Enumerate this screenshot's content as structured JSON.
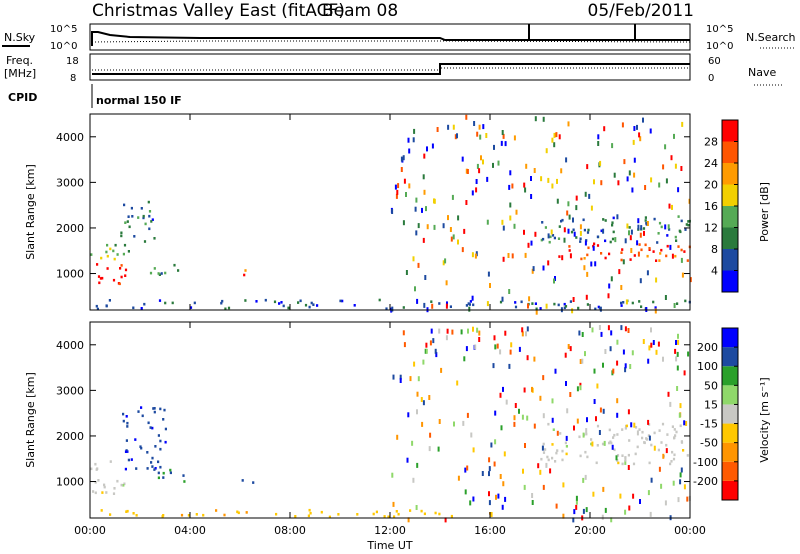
{
  "header": {
    "title": "Christmas Valley East (fitACF)",
    "beam": "Beam 08",
    "date": "05/Feb/2011"
  },
  "noise_panel": {
    "left_label": "N.Sky",
    "right_label": "N.Search",
    "left_ticks": [
      "10^5",
      "10^0"
    ],
    "right_ticks": [
      "10^5",
      "10^0"
    ]
  },
  "freq_panel": {
    "left_label_line1": "Freq.",
    "left_label_line2": "[MHz]",
    "right_label": "Nave",
    "left_ticks": [
      "18",
      "8"
    ],
    "right_ticks": [
      "60",
      "0"
    ]
  },
  "cpid": {
    "label": "CPID",
    "mode": "normal 150 IF"
  },
  "colors": {
    "power_scale": [
      "#0000ff",
      "#1d4aa0",
      "#2a7a3c",
      "#55aa55",
      "#f2d000",
      "#ff9b00",
      "#ff5500",
      "#ff0000"
    ],
    "velocity_scale": [
      "#ff0000",
      "#ff5a00",
      "#ff9500",
      "#ffc800",
      "#c8c8c4",
      "#8fd86a",
      "#2aa02a",
      "#1d4aa0",
      "#0000ff"
    ],
    "ground_scatter": "#c8c8c4"
  },
  "chart_data": [
    {
      "type": "heatmap",
      "name": "power",
      "ylabel": "Slant Range [km]",
      "yticks": [
        "1000",
        "2000",
        "3000",
        "4000"
      ],
      "ylim": [
        200,
        4500
      ],
      "xticks": [
        "00:00",
        "04:00",
        "08:00",
        "12:00",
        "16:00",
        "20:00",
        "00:00"
      ],
      "xlim_hours": [
        0,
        24
      ],
      "colorbar_label": "Power [dB]",
      "colorbar_ticks": [
        "4",
        "8",
        "12",
        "16",
        "20",
        "24",
        "28"
      ],
      "colorbar_range": [
        0,
        30
      ],
      "regions": [
        {
          "t": [
            0.0,
            1.4
          ],
          "r": [
            700,
            1300
          ],
          "level": 28
        },
        {
          "t": [
            0.0,
            1.6
          ],
          "r": [
            1300,
            1800
          ],
          "level": 14
        },
        {
          "t": [
            1.2,
            2.6
          ],
          "r": [
            1600,
            2600
          ],
          "level": 8
        },
        {
          "t": [
            2.2,
            3.8
          ],
          "r": [
            1000,
            1300
          ],
          "level": 10
        },
        {
          "t": [
            6.0,
            6.5
          ],
          "r": [
            850,
            1100
          ],
          "level": 22
        },
        {
          "t": [
            18.5,
            24.0
          ],
          "r": [
            1300,
            1700
          ],
          "level": 26
        },
        {
          "t": [
            18.0,
            24.0
          ],
          "r": [
            1700,
            2300
          ],
          "level": 8
        },
        {
          "t": [
            0.0,
            24.0
          ],
          "r": [
            250,
            450
          ],
          "level": 6
        }
      ]
    },
    {
      "type": "heatmap",
      "name": "velocity",
      "ylabel": "Slant Range [km]",
      "yticks": [
        "1000",
        "2000",
        "3000",
        "4000"
      ],
      "ylim": [
        200,
        4500
      ],
      "xticks": [
        "00:00",
        "04:00",
        "08:00",
        "12:00",
        "16:00",
        "20:00",
        "00:00"
      ],
      "xlim_hours": [
        0,
        24
      ],
      "xlabel": "Time UT",
      "colorbar_label": "Velocity [m s⁻¹]",
      "colorbar_ticks": [
        "-200",
        "-100",
        "-50",
        "-15",
        "15",
        "50",
        "100",
        "200"
      ],
      "colorbar_range": [
        -250,
        250
      ],
      "regions": [
        {
          "t": [
            0.0,
            1.4
          ],
          "r": [
            700,
            1500
          ],
          "level": 0
        },
        {
          "t": [
            1.2,
            3.0
          ],
          "r": [
            1300,
            2700
          ],
          "level": 180
        },
        {
          "t": [
            2.0,
            3.8
          ],
          "r": [
            1000,
            1300
          ],
          "level": 150
        },
        {
          "t": [
            6.0,
            6.5
          ],
          "r": [
            850,
            1100
          ],
          "level": 160
        },
        {
          "t": [
            18.0,
            24.0
          ],
          "r": [
            1400,
            2300
          ],
          "level": 0
        },
        {
          "t": [
            0.0,
            16.0
          ],
          "r": [
            250,
            400
          ],
          "level": -60
        }
      ]
    }
  ]
}
